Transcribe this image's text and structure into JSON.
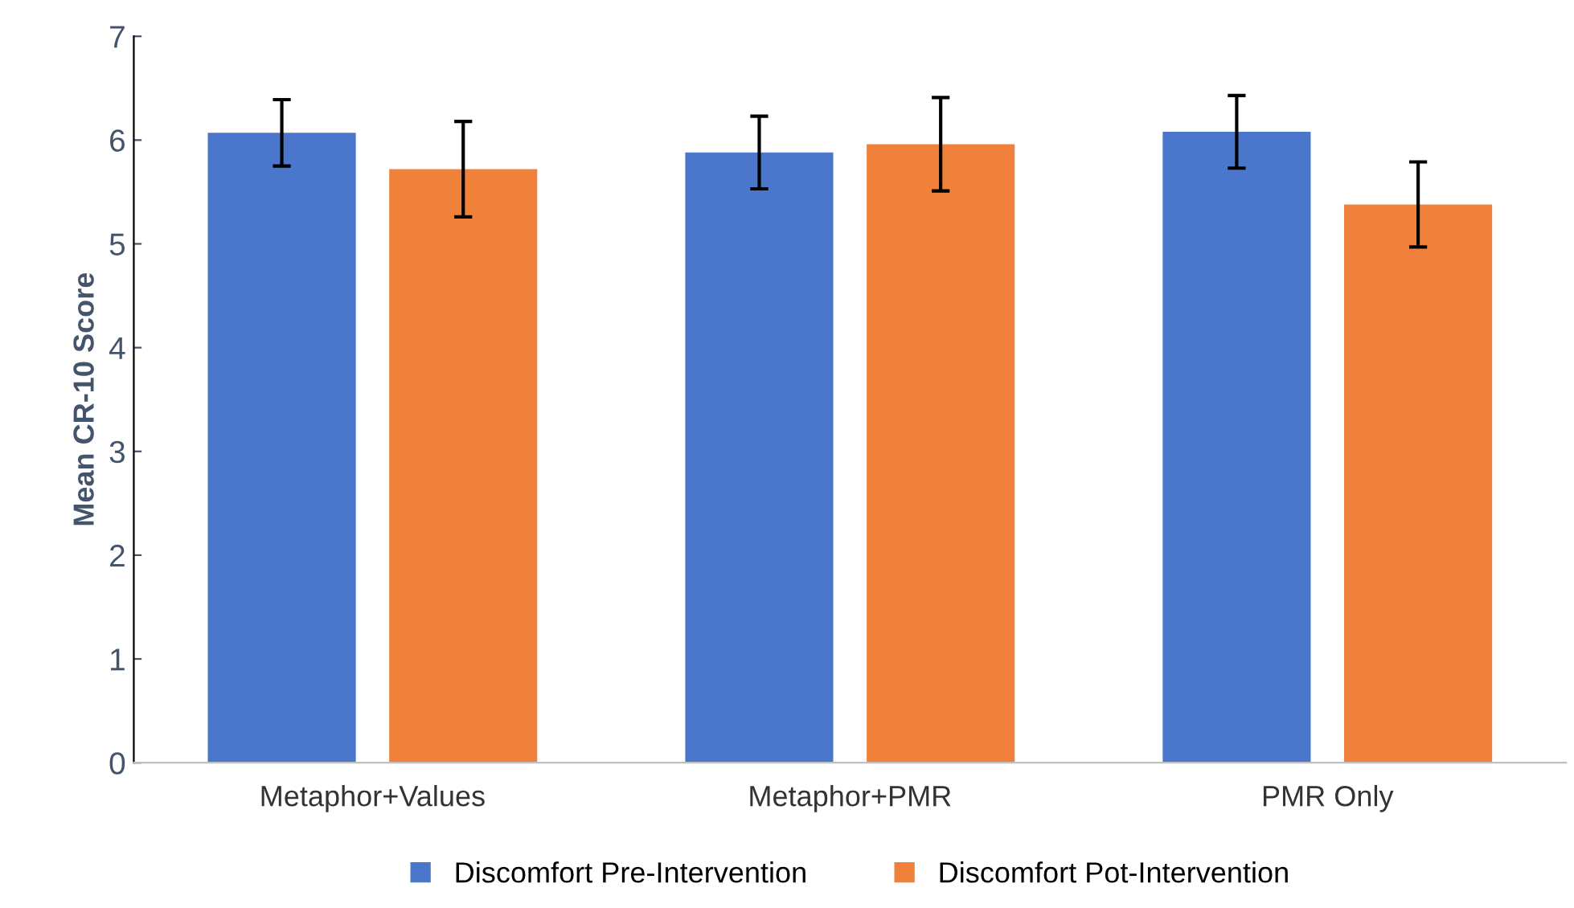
{
  "chart_data": {
    "type": "bar",
    "ylabel": "Mean CR-10 Score",
    "categories": [
      "Metaphor+Values",
      "Metaphor+PMR",
      "PMR Only"
    ],
    "series": [
      {
        "name": "Discomfort Pre-Intervention",
        "color": "#4a77cc",
        "values": [
          6.07,
          5.88,
          6.08
        ],
        "errors": [
          0.32,
          0.35,
          0.35
        ]
      },
      {
        "name": "Discomfort Pot-Intervention",
        "color": "#f0813a",
        "values": [
          5.72,
          5.96,
          5.38
        ],
        "errors": [
          0.46,
          0.45,
          0.41
        ]
      }
    ],
    "ylim": [
      0,
      7
    ],
    "yticks": [
      0,
      1,
      2,
      3,
      4,
      5,
      6,
      7
    ],
    "grid": false,
    "legend": "bottom"
  }
}
